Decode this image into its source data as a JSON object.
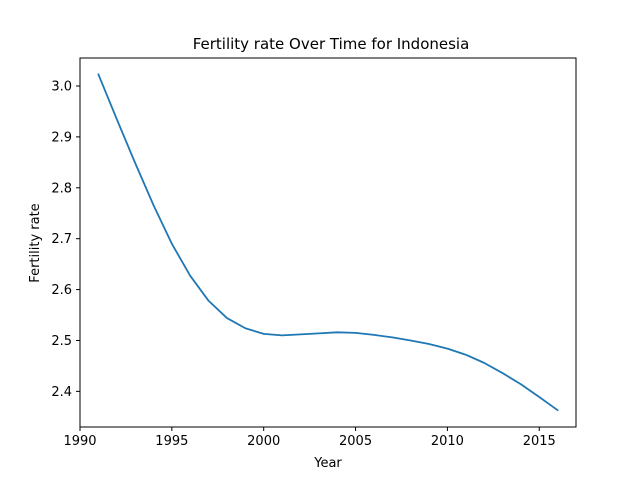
{
  "chart_data": {
    "type": "line",
    "title": "Fertility rate Over Time for Indonesia",
    "xlabel": "Year",
    "ylabel": "Fertility rate",
    "xlim": [
      1990,
      2017
    ],
    "ylim": [
      2.33,
      3.055
    ],
    "xticks": [
      1990,
      1995,
      2000,
      2005,
      2010,
      2015
    ],
    "yticks": [
      2.4,
      2.5,
      2.6,
      2.7,
      2.8,
      2.9,
      3.0
    ],
    "ytick_labels": [
      "2.4",
      "2.5",
      "2.6",
      "2.7",
      "2.8",
      "2.9",
      "3.0"
    ],
    "grid": false,
    "series": [
      {
        "color": "#1f77b4",
        "x": [
          1991,
          1992,
          1993,
          1994,
          1995,
          1996,
          1997,
          1998,
          1999,
          2000,
          2001,
          2002,
          2003,
          2004,
          2005,
          2006,
          2007,
          2008,
          2009,
          2010,
          2011,
          2012,
          2013,
          2014,
          2015,
          2016
        ],
        "y": [
          3.023,
          2.935,
          2.849,
          2.766,
          2.69,
          2.627,
          2.578,
          2.544,
          2.524,
          2.513,
          2.51,
          2.512,
          2.514,
          2.516,
          2.515,
          2.511,
          2.506,
          2.5,
          2.493,
          2.484,
          2.472,
          2.456,
          2.436,
          2.414,
          2.389,
          2.363
        ]
      }
    ]
  }
}
